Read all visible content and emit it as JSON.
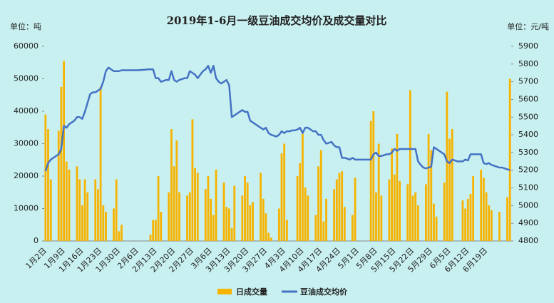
{
  "chart_data": {
    "type": "bar_line",
    "title": "2019年1-6月一级豆油成交均价及成交量对比",
    "y_unit": "单位：吨",
    "y2_unit": "单位：元/吨",
    "categories": [
      "1月2日",
      null,
      null,
      null,
      null,
      null,
      null,
      "1月9日",
      null,
      null,
      null,
      null,
      null,
      null,
      "1月16日",
      null,
      null,
      null,
      null,
      null,
      null,
      "1月23日",
      null,
      null,
      null,
      null,
      null,
      null,
      "1月30日",
      null,
      null,
      null,
      null,
      null,
      null,
      "2月6日",
      null,
      null,
      null,
      null,
      null,
      null,
      "2月13日",
      null,
      null,
      null,
      null,
      null,
      null,
      "2月20日",
      null,
      null,
      null,
      null,
      null,
      null,
      "2月27日",
      null,
      null,
      null,
      null,
      null,
      null,
      "3月6日",
      null,
      null,
      null,
      null,
      null,
      null,
      "3月13日",
      null,
      null,
      null,
      null,
      null,
      null,
      "3月20日",
      null,
      null,
      null,
      null,
      null,
      null,
      "3月27日",
      null,
      null,
      null,
      null,
      null,
      null,
      "4月3日",
      null,
      null,
      null,
      null,
      null,
      null,
      "4月10日",
      null,
      null,
      null,
      null,
      null,
      null,
      "4月17日",
      null,
      null,
      null,
      null,
      null,
      null,
      "4月24日",
      null,
      null,
      null,
      null,
      null,
      null,
      "5月1日",
      null,
      null,
      null,
      null,
      null,
      null,
      "5月8日",
      null,
      null,
      null,
      null,
      null,
      null,
      "5月15日",
      null,
      null,
      null,
      null,
      null,
      null,
      "5月22日",
      null,
      null,
      null,
      null,
      null,
      null,
      "5月29日",
      null,
      null,
      null,
      null,
      null,
      null,
      "6月5日",
      null,
      null,
      null,
      null,
      null,
      null,
      "6月12日",
      null,
      null,
      null,
      null,
      null,
      null,
      "6月19日",
      null,
      null,
      null,
      null,
      null,
      null,
      null,
      null,
      null
    ],
    "series": [
      {
        "name": "日成交量",
        "color": "#f6b300",
        "kind": "bar",
        "values": [
          39000,
          34500,
          19000,
          null,
          null,
          34000,
          47500,
          55500,
          24500,
          22000,
          null,
          null,
          23000,
          19000,
          11000,
          19000,
          15000,
          null,
          null,
          19000,
          16000,
          47500,
          11000,
          9000,
          null,
          null,
          10000,
          19000,
          3000,
          5000,
          null,
          null,
          null,
          null,
          null,
          null,
          null,
          null,
          null,
          null,
          2000,
          6500,
          6500,
          20000,
          9000,
          null,
          null,
          15000,
          34500,
          23000,
          31000,
          15000,
          null,
          null,
          14000,
          15000,
          37500,
          22500,
          21000,
          null,
          null,
          16000,
          20000,
          13000,
          8000,
          22000,
          null,
          null,
          18000,
          10500,
          10000,
          4000,
          17000,
          null,
          null,
          14000,
          20000,
          18000,
          11000,
          12000,
          null,
          null,
          21000,
          13000,
          8500,
          2500,
          1000,
          null,
          null,
          10000,
          27000,
          30000,
          6500,
          null,
          null,
          null,
          20000,
          24000,
          33000,
          16500,
          14000,
          null,
          null,
          8000,
          23000,
          28000,
          6000,
          13000,
          null,
          null,
          16000,
          19000,
          21000,
          21500,
          10500,
          null,
          null,
          8000,
          19500,
          null,
          null,
          null,
          null,
          null,
          37000,
          40000,
          15000,
          30000,
          14000,
          null,
          null,
          19000,
          28500,
          20500,
          33000,
          18500,
          null,
          null,
          17500,
          46500,
          14000,
          15000,
          11000,
          null,
          null,
          17500,
          33000,
          28000,
          11500,
          7500,
          null,
          null,
          18000,
          46000,
          31500,
          34500,
          null,
          null,
          null,
          12500,
          10000,
          13000,
          14500,
          20000,
          null,
          null,
          22000,
          19500,
          15000,
          11000,
          9500,
          null,
          null,
          9000,
          null,
          null,
          13500,
          50000
        ]
      },
      {
        "name": "豆油成交均价",
        "color": "#4472c4",
        "kind": "line",
        "axis": "y2",
        "values": [
          5195,
          5240,
          5260,
          5270,
          5280,
          5290,
          5320,
          5450,
          5440,
          5460,
          5470,
          5480,
          5500,
          5500,
          5490,
          5530,
          5580,
          5630,
          5640,
          5640,
          5650,
          5660,
          5700,
          5760,
          5780,
          5770,
          5760,
          5760,
          5760,
          5765,
          5765,
          5765,
          5765,
          5765,
          5765,
          5765,
          5766,
          5767,
          5768,
          5770,
          5770,
          5770,
          5720,
          5720,
          5700,
          5705,
          5710,
          5710,
          5760,
          5710,
          5700,
          5710,
          5715,
          5720,
          5720,
          5760,
          5750,
          5740,
          5720,
          5740,
          5760,
          5770,
          5790,
          5750,
          5790,
          5720,
          5700,
          5690,
          5700,
          5710,
          5680,
          5500,
          5510,
          5520,
          5530,
          5540,
          5530,
          5530,
          5480,
          5470,
          5460,
          5450,
          5440,
          5430,
          5440,
          5410,
          5400,
          5395,
          5390,
          5400,
          5420,
          5410,
          5420,
          5420,
          5425,
          5425,
          5430,
          5440,
          5410,
          5440,
          5440,
          5430,
          5420,
          5420,
          5400,
          5400,
          5370,
          5350,
          5355,
          5360,
          5340,
          5330,
          5330,
          5270,
          5270,
          5265,
          5260,
          5270,
          5260,
          5260,
          5260,
          5260,
          5260,
          5260,
          5260,
          5290,
          5300,
          5280,
          5280,
          5285,
          5290,
          5290,
          5300,
          5320,
          5310,
          5320,
          5320,
          5320,
          5320,
          5320,
          5320,
          5320,
          5250,
          5230,
          5215,
          5210,
          5215,
          5220,
          5330,
          5320,
          5310,
          5300,
          5290,
          5250,
          5240,
          5260,
          5255,
          5250,
          5250,
          5250,
          5260,
          5255,
          5290,
          5290,
          5290,
          5290,
          5290,
          5240,
          5235,
          5240,
          5230,
          5225,
          5220,
          5215,
          5215,
          5210,
          5205,
          5200
        ]
      }
    ],
    "ylim": [
      0,
      60000
    ],
    "yticks": [
      0,
      10000,
      20000,
      30000,
      40000,
      50000,
      60000
    ],
    "y2lim": [
      4800,
      5900
    ],
    "y2ticks": [
      4800,
      4900,
      5000,
      5100,
      5200,
      5300,
      5400,
      5500,
      5600,
      5700,
      5800,
      5900
    ],
    "grid": false
  }
}
